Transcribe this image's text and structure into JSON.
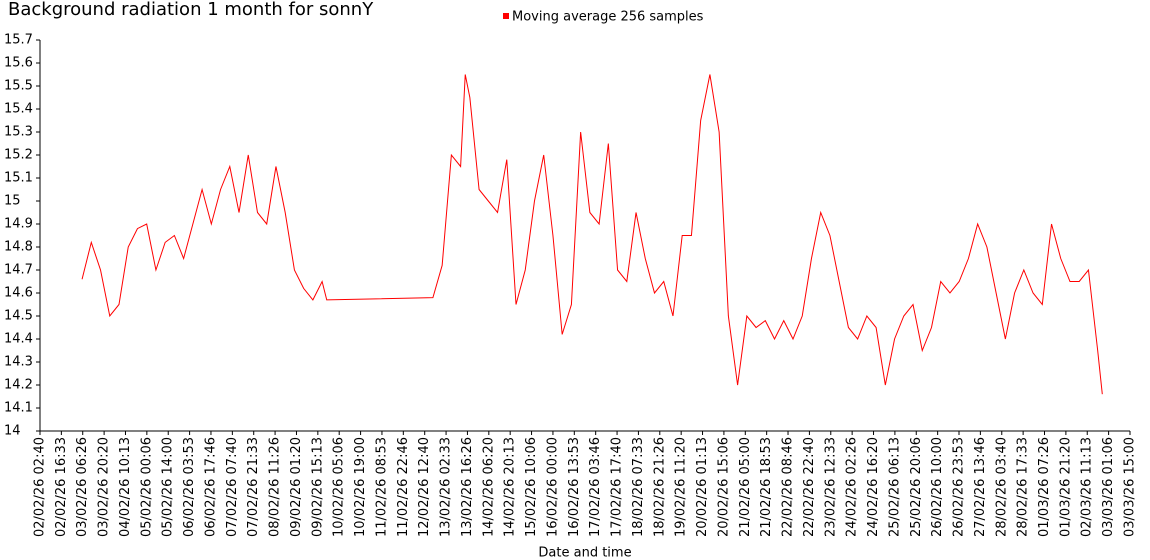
{
  "chart_data": {
    "type": "line",
    "title": "Background radiation 1 month for sonnY",
    "x_label": "Date and time",
    "grid": false,
    "legend_position": "top",
    "series": [
      {
        "name": "Moving average 256 samples",
        "color": "#ff0000",
        "x": [
          "2026-02-03T06:00",
          "2026-02-03T12:00",
          "2026-02-03T18:00",
          "2026-02-04T00:00",
          "2026-02-04T06:00",
          "2026-02-04T12:00",
          "2026-02-04T18:00",
          "2026-02-05T00:00",
          "2026-02-05T06:00",
          "2026-02-05T12:00",
          "2026-02-05T18:00",
          "2026-02-06T00:00",
          "2026-02-06T06:00",
          "2026-02-06T12:00",
          "2026-02-06T18:00",
          "2026-02-07T00:00",
          "2026-02-07T06:00",
          "2026-02-07T12:00",
          "2026-02-07T18:00",
          "2026-02-08T00:00",
          "2026-02-08T06:00",
          "2026-02-08T12:00",
          "2026-02-08T18:00",
          "2026-02-09T00:00",
          "2026-02-09T06:00",
          "2026-02-09T12:00",
          "2026-02-09T18:00",
          "2026-02-09T21:00",
          "2026-02-12T18:00",
          "2026-02-13T00:00",
          "2026-02-13T06:00",
          "2026-02-13T12:00",
          "2026-02-13T15:00",
          "2026-02-13T18:00",
          "2026-02-14T00:00",
          "2026-02-14T06:00",
          "2026-02-14T12:00",
          "2026-02-14T18:00",
          "2026-02-15T00:00",
          "2026-02-15T06:00",
          "2026-02-15T12:00",
          "2026-02-15T18:00",
          "2026-02-16T00:00",
          "2026-02-16T06:00",
          "2026-02-16T12:00",
          "2026-02-16T18:00",
          "2026-02-17T00:00",
          "2026-02-17T06:00",
          "2026-02-17T12:00",
          "2026-02-17T18:00",
          "2026-02-18T00:00",
          "2026-02-18T06:00",
          "2026-02-18T12:00",
          "2026-02-18T18:00",
          "2026-02-19T00:00",
          "2026-02-19T06:00",
          "2026-02-19T12:00",
          "2026-02-19T18:00",
          "2026-02-20T00:00",
          "2026-02-20T06:00",
          "2026-02-20T12:00",
          "2026-02-20T18:00",
          "2026-02-21T00:00",
          "2026-02-21T06:00",
          "2026-02-21T12:00",
          "2026-02-21T18:00",
          "2026-02-22T00:00",
          "2026-02-22T06:00",
          "2026-02-22T12:00",
          "2026-02-22T18:00",
          "2026-02-23T00:00",
          "2026-02-23T06:00",
          "2026-02-23T12:00",
          "2026-02-23T18:00",
          "2026-02-24T00:00",
          "2026-02-24T06:00",
          "2026-02-24T12:00",
          "2026-02-24T18:00",
          "2026-02-25T00:00",
          "2026-02-25T06:00",
          "2026-02-25T12:00",
          "2026-02-25T18:00",
          "2026-02-26T00:00",
          "2026-02-26T06:00",
          "2026-02-26T12:00",
          "2026-02-26T18:00",
          "2026-02-27T00:00",
          "2026-02-27T06:00",
          "2026-02-27T12:00",
          "2026-02-27T18:00",
          "2026-02-28T00:00",
          "2026-02-28T06:00",
          "2026-02-28T12:00",
          "2026-02-28T18:00",
          "2026-03-01T00:00",
          "2026-03-01T06:00",
          "2026-03-01T12:00",
          "2026-03-01T18:00",
          "2026-03-02T00:00",
          "2026-03-02T06:00",
          "2026-03-02T12:00",
          "2026-03-02T18:00",
          "2026-03-02T21:00"
        ],
        "values": [
          14.66,
          14.82,
          14.7,
          14.5,
          14.55,
          14.8,
          14.88,
          14.9,
          14.7,
          14.82,
          14.85,
          14.75,
          14.9,
          15.05,
          14.9,
          15.05,
          15.15,
          14.95,
          15.2,
          14.95,
          14.9,
          15.15,
          14.95,
          14.7,
          14.62,
          14.57,
          14.65,
          14.57,
          14.58,
          14.72,
          15.2,
          15.15,
          15.55,
          15.45,
          15.05,
          15.0,
          14.95,
          15.18,
          14.55,
          14.7,
          15.0,
          15.2,
          14.85,
          14.42,
          14.55,
          15.3,
          14.95,
          14.9,
          15.25,
          14.7,
          14.65,
          14.95,
          14.75,
          14.6,
          14.65,
          14.5,
          14.85,
          14.85,
          15.35,
          15.55,
          15.3,
          14.5,
          14.2,
          14.5,
          14.45,
          14.48,
          14.4,
          14.48,
          14.4,
          14.5,
          14.75,
          14.95,
          14.85,
          14.65,
          14.45,
          14.4,
          14.5,
          14.45,
          14.2,
          14.4,
          14.5,
          14.55,
          14.35,
          14.45,
          14.65,
          14.6,
          14.65,
          14.75,
          14.9,
          14.8,
          14.6,
          14.4,
          14.6,
          14.7,
          14.6,
          14.55,
          14.9,
          14.75,
          14.65,
          14.65,
          14.7,
          14.35,
          14.16
        ]
      }
    ],
    "ylim": [
      14,
      15.7
    ],
    "yticks": [
      14,
      14.1,
      14.2,
      14.3,
      14.4,
      14.5,
      14.6,
      14.7,
      14.8,
      14.9,
      15,
      15.1,
      15.2,
      15.3,
      15.4,
      15.5,
      15.6,
      15.7
    ],
    "xlim": [
      "2026-02-02T02:40",
      "2026-03-03T15:00"
    ],
    "xticks": [
      {
        "value": "2026-02-02T02:40",
        "label": "02/02/26 02:40"
      },
      {
        "value": "2026-02-02T16:33",
        "label": "02/02/26 16:33"
      },
      {
        "value": "2026-02-03T06:26",
        "label": "03/02/26 06:26"
      },
      {
        "value": "2026-02-03T20:20",
        "label": "03/02/26 20:20"
      },
      {
        "value": "2026-02-04T10:13",
        "label": "04/02/26 10:13"
      },
      {
        "value": "2026-02-05T00:06",
        "label": "05/02/26 00:06"
      },
      {
        "value": "2026-02-05T14:00",
        "label": "05/02/26 14:00"
      },
      {
        "value": "2026-02-06T03:53",
        "label": "06/02/26 03:53"
      },
      {
        "value": "2026-02-06T17:46",
        "label": "06/02/26 17:46"
      },
      {
        "value": "2026-02-07T07:40",
        "label": "07/02/26 07:40"
      },
      {
        "value": "2026-02-07T21:33",
        "label": "07/02/26 21:33"
      },
      {
        "value": "2026-02-08T11:26",
        "label": "08/02/26 11:26"
      },
      {
        "value": "2026-02-09T01:20",
        "label": "09/02/26 01:20"
      },
      {
        "value": "2026-02-09T15:13",
        "label": "09/02/26 15:13"
      },
      {
        "value": "2026-02-10T05:06",
        "label": "10/02/26 05:06"
      },
      {
        "value": "2026-02-10T19:00",
        "label": "10/02/26 19:00"
      },
      {
        "value": "2026-02-11T08:53",
        "label": "11/02/26 08:53"
      },
      {
        "value": "2026-02-11T22:46",
        "label": "11/02/26 22:46"
      },
      {
        "value": "2026-02-12T12:40",
        "label": "12/02/26 12:40"
      },
      {
        "value": "2026-02-13T02:33",
        "label": "13/02/26 02:33"
      },
      {
        "value": "2026-02-13T16:26",
        "label": "13/02/26 16:26"
      },
      {
        "value": "2026-02-14T06:20",
        "label": "14/02/26 06:20"
      },
      {
        "value": "2026-02-14T20:13",
        "label": "14/02/26 20:13"
      },
      {
        "value": "2026-02-15T10:06",
        "label": "15/02/26 10:06"
      },
      {
        "value": "2026-02-16T00:00",
        "label": "16/02/26 00:00"
      },
      {
        "value": "2026-02-16T13:53",
        "label": "16/02/26 13:53"
      },
      {
        "value": "2026-02-17T03:46",
        "label": "17/02/26 03:46"
      },
      {
        "value": "2026-02-17T17:40",
        "label": "17/02/26 17:40"
      },
      {
        "value": "2026-02-18T07:33",
        "label": "18/02/26 07:33"
      },
      {
        "value": "2026-02-18T21:26",
        "label": "18/02/26 21:26"
      },
      {
        "value": "2026-02-19T11:20",
        "label": "19/02/26 11:20"
      },
      {
        "value": "2026-02-20T01:13",
        "label": "20/02/26 01:13"
      },
      {
        "value": "2026-02-20T15:06",
        "label": "20/02/26 15:06"
      },
      {
        "value": "2026-02-21T05:00",
        "label": "21/02/26 05:00"
      },
      {
        "value": "2026-02-21T18:53",
        "label": "21/02/26 18:53"
      },
      {
        "value": "2026-02-22T08:46",
        "label": "22/02/26 08:46"
      },
      {
        "value": "2026-02-22T22:40",
        "label": "22/02/26 22:40"
      },
      {
        "value": "2026-02-23T12:33",
        "label": "23/02/26 12:33"
      },
      {
        "value": "2026-02-24T02:26",
        "label": "24/02/26 02:26"
      },
      {
        "value": "2026-02-24T16:20",
        "label": "24/02/26 16:20"
      },
      {
        "value": "2026-02-25T06:13",
        "label": "25/02/26 06:13"
      },
      {
        "value": "2026-02-25T20:06",
        "label": "25/02/26 20:06"
      },
      {
        "value": "2026-02-26T10:00",
        "label": "26/02/26 10:00"
      },
      {
        "value": "2026-02-26T23:53",
        "label": "26/02/26 23:53"
      },
      {
        "value": "2026-02-27T13:46",
        "label": "27/02/26 13:46"
      },
      {
        "value": "2026-02-28T03:40",
        "label": "28/02/26 03:40"
      },
      {
        "value": "2026-02-28T17:33",
        "label": "28/02/26 17:33"
      },
      {
        "value": "2026-03-01T07:26",
        "label": "01/03/26 07:26"
      },
      {
        "value": "2026-03-01T21:20",
        "label": "01/03/26 21:20"
      },
      {
        "value": "2026-03-02T11:13",
        "label": "02/03/26 11:13"
      },
      {
        "value": "2026-03-03T01:06",
        "label": "03/03/26 01:06"
      },
      {
        "value": "2026-03-03T15:00",
        "label": "03/03/26 15:00"
      }
    ]
  }
}
